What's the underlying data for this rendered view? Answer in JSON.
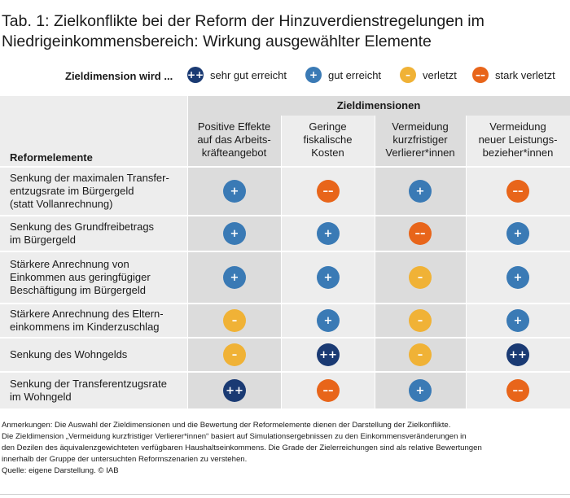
{
  "title": "Tab. 1: Zielkonflikte bei der Reform der Hinzuverdienstregelungen im Niedrigeinkommensbereich: Wirkung ausgewählter Elemente",
  "legend": {
    "label": "Zieldimension wird ...",
    "items": [
      {
        "symbol": "++",
        "text": "sehr gut erreicht",
        "color": "#1a3a73"
      },
      {
        "symbol": "+",
        "text": "gut erreicht",
        "color": "#3a7ab5"
      },
      {
        "symbol": "–",
        "text": "verletzt",
        "color": "#f0b236"
      },
      {
        "symbol": "––",
        "text": "stark verletzt",
        "color": "#e8651a"
      }
    ]
  },
  "table": {
    "group_header": "Zieldimensionen",
    "row_header": "Reformelemente",
    "columns": [
      [
        "Positive Effekte",
        "auf das Arbeits-",
        "kräfteangebot"
      ],
      [
        "Geringe",
        "fiskalische",
        "Kosten"
      ],
      [
        "Vermeidung",
        "kurzfristiger",
        "Verlierer*innen"
      ],
      [
        "Vermeidung",
        "neuer Leistungs-",
        "bezieher*innen"
      ]
    ],
    "rows": [
      {
        "label": [
          "Senkung der maximalen Transfer-",
          "entzugsrate im Bürgergeld",
          "(statt Vollanrechnung)"
        ],
        "values": [
          "+",
          "––",
          "+",
          "––"
        ]
      },
      {
        "label": [
          "Senkung des Grundfreibetrags",
          "im Bürgergeld"
        ],
        "values": [
          "+",
          "+",
          "––",
          "+"
        ]
      },
      {
        "label": [
          "Stärkere Anrechnung von",
          "Einkommen aus geringfügiger",
          "Beschäftigung im Bürgergeld"
        ],
        "values": [
          "+",
          "+",
          "–",
          "+"
        ]
      },
      {
        "label": [
          "Stärkere Anrechnung des Eltern-",
          "einkommens im Kinderzuschlag"
        ],
        "values": [
          "–",
          "+",
          "–",
          "+"
        ]
      },
      {
        "label": [
          "Senkung des Wohngelds"
        ],
        "values": [
          "–",
          "++",
          "–",
          "++"
        ]
      },
      {
        "label": [
          "Senkung der Transferentzugsrate",
          "im Wohngeld"
        ],
        "values": [
          "++",
          "––",
          "+",
          "––"
        ]
      }
    ]
  },
  "notes": [
    "Anmerkungen: Die Auswahl der Zieldimensionen und die Bewertung der Reformelemente dienen der Darstellung der Zielkonflikte.",
    "Die Zieldimension „Vermeidung kurzfristiger Verlierer*innen“ basiert auf Simulationsergebnissen zu den Einkommensveränderungen in",
    "den Dezilen des äquivalenzgewichteten verfügbaren Haushaltseinkommens. Die Grade der Zielerreichungen sind als relative Bewertungen",
    "innerhalb der Gruppe der untersuchten Reformszenarien zu verstehen.",
    "Quelle: eigene Darstellung.  © IAB"
  ]
}
